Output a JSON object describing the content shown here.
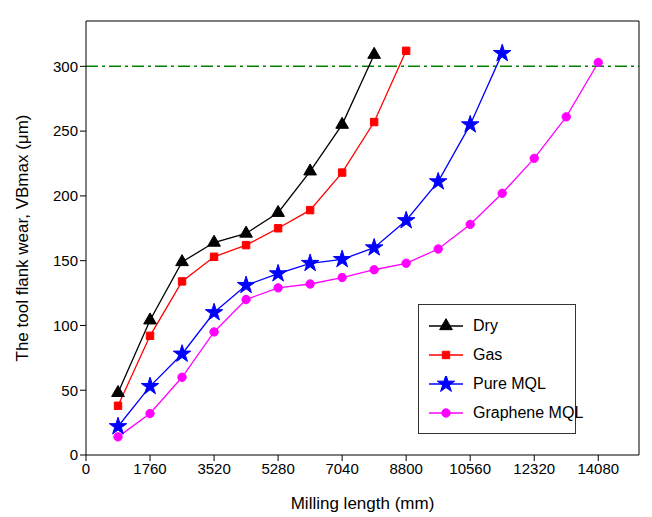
{
  "chart_data": {
    "type": "line",
    "x_label": "Milling length (mm)",
    "y_label": "The tool flank wear, VBmax (μm)",
    "x": [
      880,
      1760,
      2640,
      3520,
      4400,
      5280,
      6160,
      7040,
      7920,
      8800,
      9680,
      10560,
      11440,
      12320,
      13200,
      14080
    ],
    "series": [
      {
        "name": "Dry",
        "color": "#000000",
        "marker": "triangle",
        "values": [
          48,
          104,
          149,
          164,
          171,
          187,
          219,
          255,
          309,
          null,
          null,
          null,
          null,
          null,
          null,
          null
        ]
      },
      {
        "name": "Gas",
        "color": "#ff0000",
        "marker": "square",
        "values": [
          38,
          92,
          134,
          153,
          162,
          175,
          189,
          218,
          257,
          312,
          null,
          null,
          null,
          null,
          null,
          null
        ]
      },
      {
        "name": "Pure MQL",
        "color": "#0000ff",
        "marker": "star",
        "values": [
          22,
          53,
          78,
          110,
          131,
          140,
          148,
          151,
          160,
          181,
          211,
          255,
          310,
          null,
          null,
          null
        ]
      },
      {
        "name": "Graphene MQL",
        "color": "#ff00ff",
        "marker": "circle",
        "values": [
          14,
          32,
          60,
          95,
          120,
          129,
          132,
          137,
          143,
          148,
          159,
          178,
          202,
          229,
          261,
          303
        ]
      }
    ],
    "xlim": [
      0,
      15200
    ],
    "xticks": [
      0,
      1760,
      3520,
      5280,
      7040,
      8800,
      10560,
      12320,
      14080
    ],
    "ylim": [
      0,
      335
    ],
    "yticks": [
      0,
      50,
      100,
      150,
      200,
      250,
      300
    ],
    "reference_lines": [
      {
        "y": 300,
        "color": "#008000",
        "line_style": "dashdot"
      }
    ],
    "legend": "lower right",
    "grid": false
  }
}
